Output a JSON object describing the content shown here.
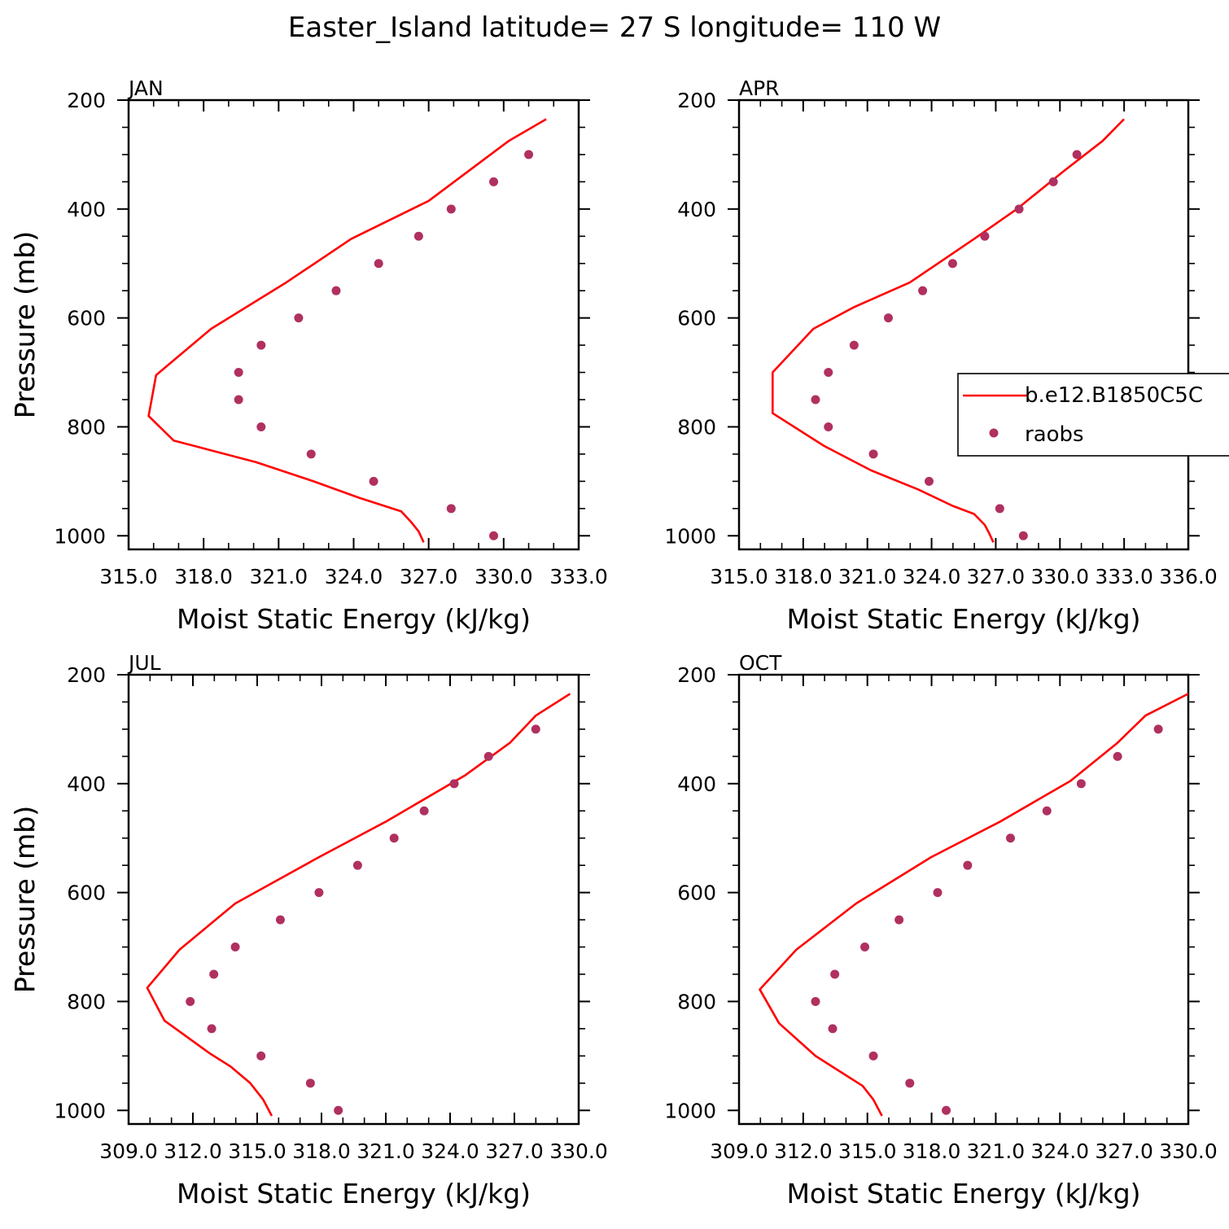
{
  "figure": {
    "title": "Easter_Island  latitude= 27 S longitude= 110 W"
  },
  "colors": {
    "model_line": "#ff0000",
    "raobs_marker": "#b03060",
    "axes": "#000000"
  },
  "legend": {
    "entries": [
      {
        "label": "b.e12.B1850C5C",
        "type": "line"
      },
      {
        "label": "raobs",
        "type": "marker"
      }
    ]
  },
  "chart_data": [
    {
      "type": "line",
      "panel": "JAN",
      "xlabel": "Moist Static Energy (kJ/kg)",
      "ylabel": "Pressure (mb)",
      "xlim": [
        315.0,
        333.0
      ],
      "ylim": [
        1025,
        200
      ],
      "xticks": [
        "315.0",
        "318.0",
        "321.0",
        "324.0",
        "327.0",
        "330.0",
        "333.0"
      ],
      "yticks": [
        "200",
        "400",
        "600",
        "800",
        "1000"
      ],
      "series": [
        {
          "name": "b.e12.B1850C5C",
          "kind": "line",
          "x": [
            326.8,
            326.6,
            326.3,
            325.9,
            324.2,
            322.4,
            320.1,
            316.8,
            315.8,
            316.1,
            318.3,
            321.3,
            323.9,
            327.0,
            330.2,
            331.7
          ],
          "y": [
            1012,
            992,
            975,
            955,
            930,
            900,
            865,
            825,
            780,
            705,
            620,
            535,
            455,
            385,
            275,
            235
          ]
        },
        {
          "name": "raobs",
          "kind": "scatter",
          "x": [
            329.6,
            327.9,
            324.8,
            322.3,
            320.3,
            319.4,
            319.4,
            320.3,
            321.8,
            323.3,
            325.0,
            326.6,
            327.9,
            329.6,
            331.0
          ],
          "y": [
            1000,
            950,
            900,
            850,
            800,
            750,
            700,
            650,
            600,
            550,
            500,
            450,
            400,
            350,
            300
          ]
        }
      ]
    },
    {
      "type": "line",
      "panel": "APR",
      "xlabel": "Moist Static Energy (kJ/kg)",
      "ylabel": "Pressure (mb)",
      "xlim": [
        315.03,
        336.0
      ],
      "ylim": [
        1025,
        200
      ],
      "xticks": [
        "315.0",
        "318.0",
        "321.0",
        "324.0",
        "327.0",
        "330.0",
        "333.0",
        "336.0"
      ],
      "yticks": [
        "200",
        "400",
        "600",
        "800",
        "1000"
      ],
      "series": [
        {
          "name": "b.e12.B1850C5C",
          "kind": "line",
          "x": [
            326.9,
            326.7,
            326.5,
            326.0,
            325.0,
            323.4,
            321.2,
            319.0,
            316.6,
            316.6,
            318.5,
            320.4,
            323.0,
            326.0,
            328.0,
            330.2,
            332.0,
            333.0
          ],
          "y": [
            1012,
            995,
            980,
            960,
            945,
            915,
            880,
            835,
            775,
            700,
            620,
            580,
            535,
            455,
            400,
            330,
            275,
            235
          ]
        },
        {
          "name": "raobs",
          "kind": "scatter",
          "x": [
            328.3,
            327.2,
            323.9,
            321.3,
            319.2,
            318.6,
            319.2,
            320.4,
            322.0,
            323.6,
            325.0,
            326.5,
            328.1,
            329.7,
            330.8
          ],
          "y": [
            1000,
            950,
            900,
            850,
            800,
            750,
            700,
            650,
            600,
            550,
            500,
            450,
            400,
            350,
            300
          ]
        }
      ]
    },
    {
      "type": "line",
      "panel": "JUL",
      "xlabel": "Moist Static Energy (kJ/kg)",
      "ylabel": "Pressure (mb)",
      "xlim": [
        309.03,
        330.0
      ],
      "ylim": [
        1025,
        200
      ],
      "xticks": [
        "309.0",
        "312.0",
        "315.0",
        "318.0",
        "321.0",
        "324.0",
        "327.0",
        "330.0"
      ],
      "yticks": [
        "200",
        "400",
        "600",
        "800",
        "1000"
      ],
      "series": [
        {
          "name": "b.e12.B1850C5C",
          "kind": "line",
          "x": [
            315.7,
            315.3,
            314.7,
            313.8,
            312.8,
            310.7,
            309.9,
            311.4,
            314.0,
            317.9,
            321.0,
            324.7,
            326.8,
            328.0,
            329.6
          ],
          "y": [
            1010,
            980,
            950,
            920,
            895,
            835,
            775,
            705,
            620,
            535,
            470,
            385,
            325,
            275,
            235
          ]
        },
        {
          "name": "raobs",
          "kind": "scatter",
          "x": [
            318.8,
            317.5,
            315.2,
            312.9,
            311.9,
            313.0,
            314.0,
            316.1,
            317.9,
            319.7,
            321.4,
            322.8,
            324.2,
            325.8,
            328.0
          ],
          "y": [
            1000,
            950,
            900,
            850,
            800,
            750,
            700,
            650,
            600,
            550,
            500,
            450,
            400,
            350,
            300
          ]
        }
      ]
    },
    {
      "type": "line",
      "panel": "OCT",
      "xlabel": "Moist Static Energy (kJ/kg)",
      "ylabel": "Pressure (mb)",
      "xlim": [
        309.03,
        330.0
      ],
      "ylim": [
        1025,
        200
      ],
      "xticks": [
        "309.0",
        "312.0",
        "315.0",
        "318.0",
        "321.0",
        "324.0",
        "327.0",
        "330.0"
      ],
      "yticks": [
        "200",
        "400",
        "600",
        "800",
        "1000"
      ],
      "series": [
        {
          "name": "b.e12.B1850C5C",
          "kind": "line",
          "x": [
            315.7,
            315.3,
            314.8,
            313.6,
            312.6,
            310.9,
            310.0,
            311.7,
            314.5,
            318.0,
            321.2,
            324.5,
            326.7,
            328.0,
            330.0
          ],
          "y": [
            1010,
            980,
            955,
            925,
            900,
            840,
            778,
            705,
            620,
            535,
            470,
            395,
            325,
            275,
            235
          ]
        },
        {
          "name": "raobs",
          "kind": "scatter",
          "x": [
            318.7,
            317.0,
            315.3,
            313.4,
            312.6,
            313.5,
            314.9,
            316.5,
            318.3,
            319.7,
            321.7,
            323.4,
            325.0,
            326.7,
            328.6
          ],
          "y": [
            1000,
            950,
            900,
            850,
            800,
            750,
            700,
            650,
            600,
            550,
            500,
            450,
            400,
            350,
            300
          ]
        }
      ]
    }
  ]
}
